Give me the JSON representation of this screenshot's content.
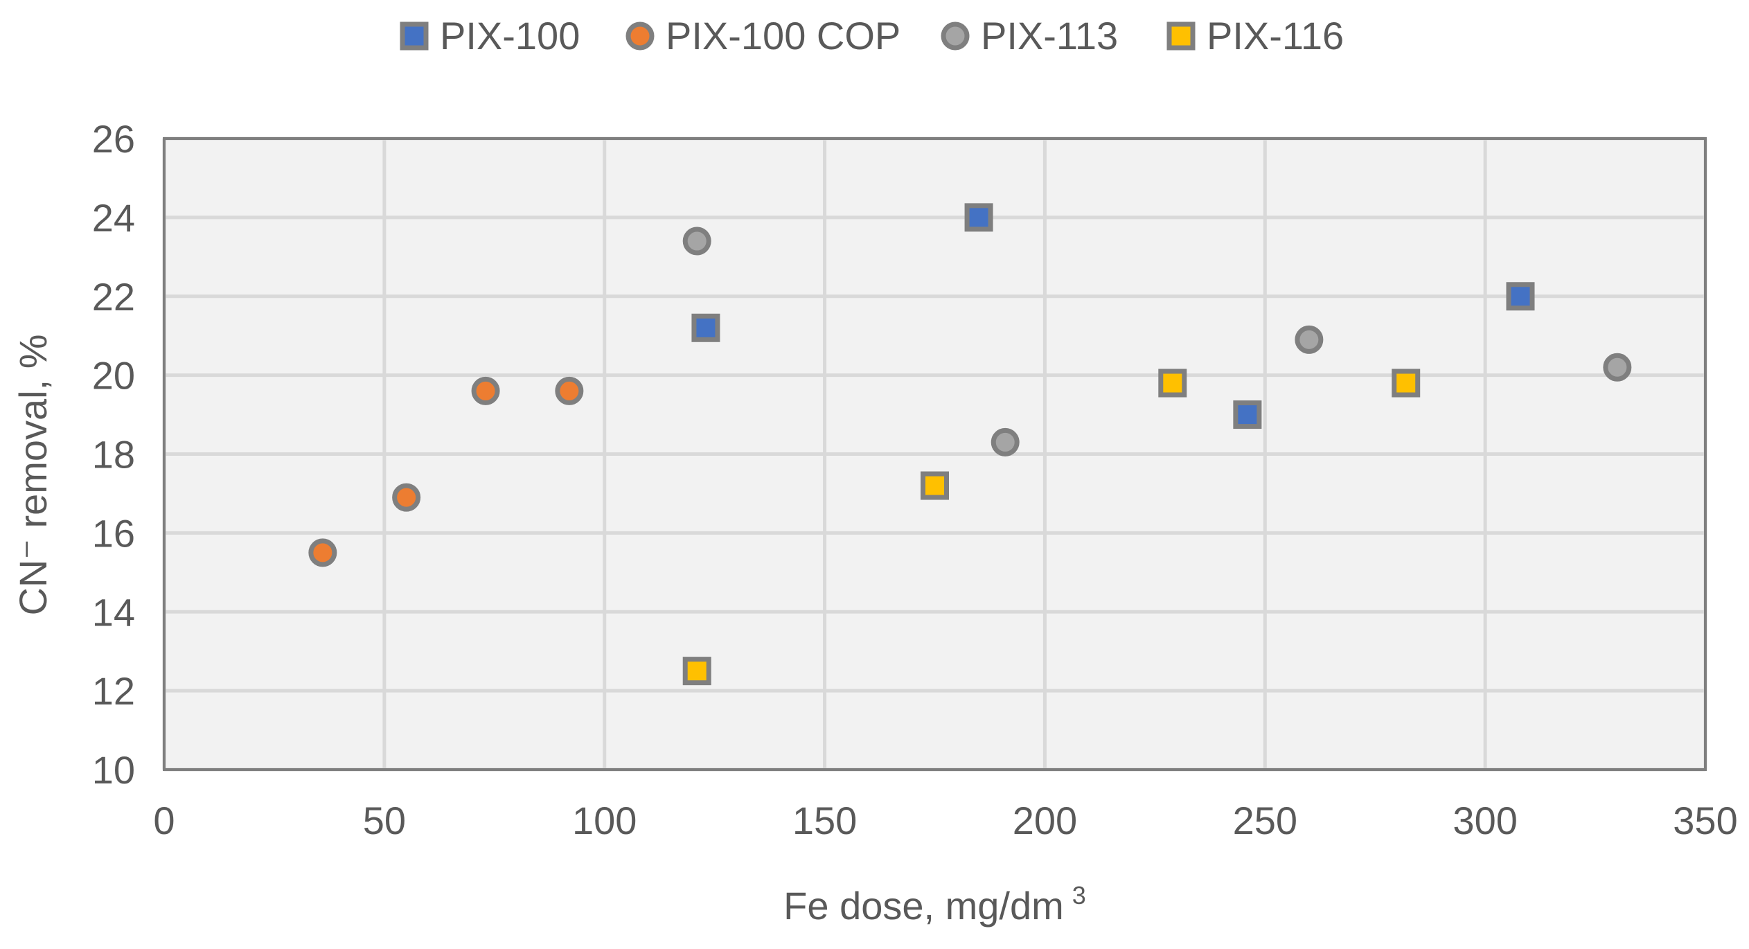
{
  "chart_data": {
    "type": "scatter",
    "title": "",
    "xlabel": "Fe dose, mg/dm",
    "xlabel_superscript": "3",
    "ylabel": "CN⁻ removal, %",
    "xlim": [
      0,
      350
    ],
    "ylim": [
      10,
      26
    ],
    "xticks": [
      0,
      50,
      100,
      150,
      200,
      250,
      300,
      350
    ],
    "yticks": [
      10,
      12,
      14,
      16,
      18,
      20,
      22,
      24,
      26
    ],
    "grid": true,
    "legend_position": "top",
    "plot_background": "#f2f2f2",
    "grid_color": "#d9d9d9",
    "series": [
      {
        "name": "PIX-100",
        "marker": "square",
        "color": "#4472c4",
        "edge_color": "#7f7f7f",
        "points": [
          [
            123,
            21.2
          ],
          [
            185,
            24.0
          ],
          [
            246,
            19.0
          ],
          [
            308,
            22.0
          ]
        ]
      },
      {
        "name": "PIX-100 COP",
        "marker": "circle",
        "color": "#ed7d31",
        "edge_color": "#7f7f7f",
        "points": [
          [
            36,
            15.5
          ],
          [
            55,
            16.9
          ],
          [
            73,
            19.6
          ],
          [
            92,
            19.6
          ]
        ]
      },
      {
        "name": "PIX-113",
        "marker": "circle",
        "color": "#a5a5a5",
        "edge_color": "#7f7f7f",
        "points": [
          [
            121,
            23.4
          ],
          [
            191,
            18.3
          ],
          [
            260,
            20.9
          ],
          [
            330,
            20.2
          ]
        ]
      },
      {
        "name": "PIX-116",
        "marker": "square",
        "color": "#ffc000",
        "edge_color": "#7f7f7f",
        "points": [
          [
            121,
            12.5
          ],
          [
            175,
            17.2
          ],
          [
            229,
            19.8
          ],
          [
            282,
            19.8
          ]
        ]
      }
    ]
  }
}
